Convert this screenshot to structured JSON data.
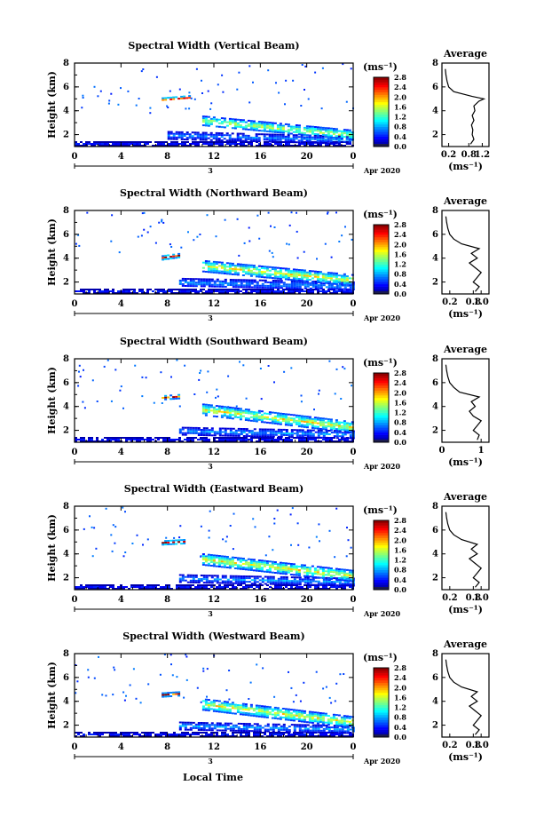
{
  "figure": {
    "x_axis_label": "Local Time",
    "date_label": "Apr 2020",
    "day_label": "3",
    "y_axis_label": "Height (km)",
    "unit_label": "(ms⁻¹)",
    "average_title": "Average",
    "average_xunit": "(ms⁻¹)"
  },
  "chart_data": [
    {
      "type": "heatmap",
      "title": "Spectral Width (Vertical Beam)",
      "ylabel": "Height (km)",
      "xlabel": "Local Time",
      "x_ticks": [
        "0",
        "4",
        "8",
        "12",
        "16",
        "20",
        "0"
      ],
      "y_ticks": [
        "2",
        "4",
        "6",
        "8"
      ],
      "xlim": [
        0,
        24
      ],
      "ylim": [
        1,
        8
      ],
      "colorbar": {
        "ticks": [
          "0.0",
          "0.4",
          "0.8",
          "1.2",
          "1.6",
          "2.0",
          "2.4",
          "2.8"
        ],
        "range": [
          0,
          2.8
        ]
      },
      "layers": [
        {
          "x": [
            0,
            24
          ],
          "center": [
            1.3,
            1.3
          ],
          "width": 0.3,
          "value": 0.3
        },
        {
          "x": [
            8,
            24
          ],
          "center": [
            2.0,
            1.6
          ],
          "width": 0.6,
          "value": 0.55
        },
        {
          "x": [
            11,
            24
          ],
          "center": [
            3.2,
            2.0
          ],
          "width": 0.8,
          "value": 1.2
        },
        {
          "x": [
            7.5,
            10
          ],
          "center": [
            5.0,
            5.2
          ],
          "width": 0.25,
          "value": 2.0
        }
      ],
      "average_profile": {
        "xlabel": "(ms⁻¹)",
        "x_ticks": [
          "0.2",
          "0.8",
          "1.2"
        ],
        "xlim": [
          0,
          1.4
        ],
        "ylim": [
          1,
          8
        ],
        "y_ticks": [
          "2",
          "4",
          "6",
          "8"
        ],
        "height": [
          1.2,
          1.6,
          2.0,
          2.4,
          2.8,
          3.2,
          3.6,
          4.0,
          4.4,
          4.8,
          5.0,
          5.2,
          5.6,
          6.0,
          6.5,
          7.0,
          7.5
        ],
        "value": [
          0.85,
          0.95,
          0.9,
          0.92,
          0.88,
          0.95,
          0.9,
          0.98,
          0.95,
          1.1,
          1.25,
          0.9,
          0.35,
          0.2,
          0.15,
          0.12,
          0.1
        ]
      }
    },
    {
      "type": "heatmap",
      "title": "Spectral Width (Northward Beam)",
      "ylabel": "Height (km)",
      "xlabel": "Local Time",
      "x_ticks": [
        "0",
        "4",
        "8",
        "12",
        "16",
        "20",
        "0"
      ],
      "y_ticks": [
        "2",
        "4",
        "6",
        "8"
      ],
      "xlim": [
        0,
        24
      ],
      "ylim": [
        1,
        8
      ],
      "colorbar": {
        "ticks": [
          "0.0",
          "0.4",
          "0.8",
          "1.2",
          "1.6",
          "2.0",
          "2.4",
          "2.8"
        ],
        "range": [
          0,
          2.8
        ]
      },
      "layers": [
        {
          "x": [
            0,
            24
          ],
          "center": [
            1.3,
            1.3
          ],
          "width": 0.3,
          "value": 0.3
        },
        {
          "x": [
            9,
            24
          ],
          "center": [
            2.0,
            1.7
          ],
          "width": 0.7,
          "value": 0.6
        },
        {
          "x": [
            11,
            24
          ],
          "center": [
            3.4,
            2.2
          ],
          "width": 0.9,
          "value": 1.3
        },
        {
          "x": [
            7.5,
            9
          ],
          "center": [
            4.1,
            4.3
          ],
          "width": 0.3,
          "value": 2.0
        }
      ],
      "average_profile": {
        "xlabel": "(ms⁻¹)",
        "x_ticks": [
          "0.2",
          "0.8",
          "1.0"
        ],
        "xlim": [
          0,
          1.2
        ],
        "ylim": [
          1,
          8
        ],
        "y_ticks": [
          "2",
          "4",
          "6",
          "8"
        ],
        "height": [
          1.2,
          1.6,
          2.0,
          2.4,
          2.8,
          3.2,
          3.6,
          4.0,
          4.4,
          4.8,
          5.2,
          5.6,
          6.0,
          6.5,
          7.0,
          7.5
        ],
        "value": [
          0.85,
          0.95,
          0.8,
          0.9,
          1.0,
          0.85,
          0.7,
          0.9,
          0.75,
          0.95,
          0.5,
          0.3,
          0.2,
          0.15,
          0.12,
          0.1
        ]
      }
    },
    {
      "type": "heatmap",
      "title": "Spectral Width (Southward Beam)",
      "ylabel": "Height (km)",
      "xlabel": "Local Time",
      "x_ticks": [
        "0",
        "4",
        "8",
        "12",
        "16",
        "20",
        "0"
      ],
      "y_ticks": [
        "2",
        "4",
        "6",
        "8"
      ],
      "xlim": [
        0,
        24
      ],
      "ylim": [
        1,
        8
      ],
      "colorbar": {
        "ticks": [
          "0.0",
          "0.4",
          "0.8",
          "1.2",
          "1.6",
          "2.0",
          "2.4",
          "2.8"
        ],
        "range": [
          0,
          2.8
        ]
      },
      "layers": [
        {
          "x": [
            0,
            24
          ],
          "center": [
            1.3,
            1.3
          ],
          "width": 0.3,
          "value": 0.3
        },
        {
          "x": [
            9,
            24
          ],
          "center": [
            2.0,
            1.7
          ],
          "width": 0.6,
          "value": 0.6
        },
        {
          "x": [
            11,
            24
          ],
          "center": [
            3.8,
            2.3
          ],
          "width": 0.9,
          "value": 1.3
        },
        {
          "x": [
            7.5,
            9
          ],
          "center": [
            4.8,
            4.9
          ],
          "width": 0.3,
          "value": 1.8
        }
      ],
      "average_profile": {
        "xlabel": "(ms⁻¹)",
        "x_ticks": [
          "0",
          "1"
        ],
        "xlim": [
          0,
          1.2
        ],
        "ylim": [
          1,
          8
        ],
        "y_ticks": [
          "2",
          "4",
          "6",
          "8"
        ],
        "height": [
          1.2,
          1.6,
          2.0,
          2.4,
          2.8,
          3.2,
          3.6,
          4.0,
          4.4,
          4.8,
          5.2,
          5.6,
          6.0,
          6.5,
          7.0,
          7.5
        ],
        "value": [
          0.9,
          0.95,
          0.8,
          0.9,
          1.0,
          0.8,
          0.7,
          0.85,
          0.75,
          0.95,
          0.45,
          0.3,
          0.2,
          0.15,
          0.12,
          0.1
        ]
      }
    },
    {
      "type": "heatmap",
      "title": "Spectral Width (Eastward Beam)",
      "ylabel": "Height (km)",
      "xlabel": "Local Time",
      "x_ticks": [
        "0",
        "4",
        "8",
        "12",
        "16",
        "20",
        "0"
      ],
      "y_ticks": [
        "2",
        "4",
        "6",
        "8"
      ],
      "xlim": [
        0,
        24
      ],
      "ylim": [
        1,
        8
      ],
      "colorbar": {
        "ticks": [
          "0.0",
          "0.4",
          "0.8",
          "1.2",
          "1.6",
          "2.0",
          "2.4",
          "2.8"
        ],
        "range": [
          0,
          2.8
        ]
      },
      "layers": [
        {
          "x": [
            0,
            24
          ],
          "center": [
            1.3,
            1.3
          ],
          "width": 0.3,
          "value": 0.3
        },
        {
          "x": [
            9,
            24
          ],
          "center": [
            2.0,
            1.7
          ],
          "width": 0.6,
          "value": 0.6
        },
        {
          "x": [
            11,
            24
          ],
          "center": [
            3.6,
            2.2
          ],
          "width": 0.9,
          "value": 1.3
        },
        {
          "x": [
            7.5,
            9.5
          ],
          "center": [
            5.0,
            5.1
          ],
          "width": 0.3,
          "value": 2.0
        }
      ],
      "average_profile": {
        "xlabel": "(ms⁻¹)",
        "x_ticks": [
          "0.2",
          "0.8",
          "1.0"
        ],
        "xlim": [
          0,
          1.2
        ],
        "ylim": [
          1,
          8
        ],
        "y_ticks": [
          "2",
          "4",
          "6",
          "8"
        ],
        "height": [
          1.2,
          1.6,
          2.0,
          2.4,
          2.8,
          3.2,
          3.6,
          4.0,
          4.4,
          4.8,
          5.2,
          5.6,
          6.0,
          6.5,
          7.0,
          7.5
        ],
        "value": [
          0.85,
          0.95,
          0.8,
          0.9,
          1.0,
          0.85,
          0.7,
          0.9,
          0.75,
          0.9,
          0.5,
          0.3,
          0.2,
          0.15,
          0.12,
          0.1
        ]
      }
    },
    {
      "type": "heatmap",
      "title": "Spectral Width (Westward Beam)",
      "ylabel": "Height (km)",
      "xlabel": "Local Time",
      "x_ticks": [
        "0",
        "4",
        "8",
        "12",
        "16",
        "20",
        "0"
      ],
      "y_ticks": [
        "2",
        "4",
        "6",
        "8"
      ],
      "xlim": [
        0,
        24
      ],
      "ylim": [
        1,
        8
      ],
      "colorbar": {
        "ticks": [
          "0.0",
          "0.4",
          "0.8",
          "1.2",
          "1.6",
          "2.0",
          "2.4",
          "2.8"
        ],
        "range": [
          0,
          2.8
        ]
      },
      "layers": [
        {
          "x": [
            0,
            24
          ],
          "center": [
            1.3,
            1.3
          ],
          "width": 0.3,
          "value": 0.3
        },
        {
          "x": [
            9,
            24
          ],
          "center": [
            2.0,
            1.7
          ],
          "width": 0.6,
          "value": 0.6
        },
        {
          "x": [
            11,
            24
          ],
          "center": [
            3.8,
            2.3
          ],
          "width": 0.9,
          "value": 1.3
        },
        {
          "x": [
            7.5,
            9
          ],
          "center": [
            4.6,
            4.7
          ],
          "width": 0.3,
          "value": 1.8
        }
      ],
      "average_profile": {
        "xlabel": "(ms⁻¹)",
        "x_ticks": [
          "0.2",
          "0.8",
          "1.0"
        ],
        "xlim": [
          0,
          1.2
        ],
        "ylim": [
          1,
          8
        ],
        "y_ticks": [
          "2",
          "4",
          "6",
          "8"
        ],
        "height": [
          1.2,
          1.6,
          2.0,
          2.4,
          2.8,
          3.2,
          3.6,
          4.0,
          4.4,
          4.8,
          5.2,
          5.6,
          6.0,
          6.5,
          7.0,
          7.5
        ],
        "value": [
          0.85,
          0.95,
          0.8,
          0.9,
          1.0,
          0.85,
          0.7,
          0.9,
          0.75,
          0.9,
          0.5,
          0.3,
          0.2,
          0.15,
          0.12,
          0.1
        ]
      }
    }
  ]
}
